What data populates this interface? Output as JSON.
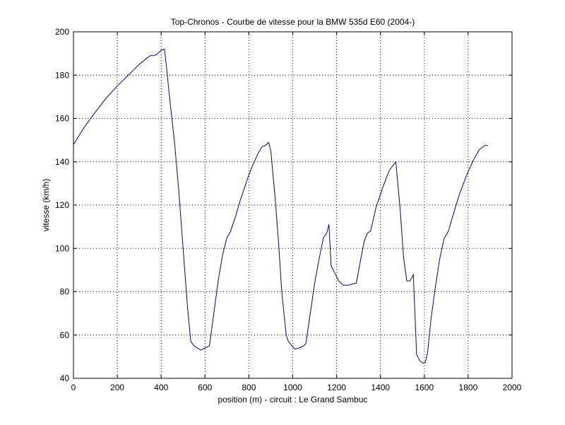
{
  "chart_data": {
    "type": "line",
    "title": "Top-Chronos - Courbe de vitesse pour la BMW 535d E60 (2004-)",
    "xlabel": "position (m) - circuit : Le Grand Sambuc",
    "ylabel": "vitesse (km/h)",
    "xlim": [
      0,
      2000
    ],
    "ylim": [
      40,
      200
    ],
    "xticks": [
      0,
      200,
      400,
      600,
      800,
      1000,
      1200,
      1400,
      1600,
      1800,
      2000
    ],
    "yticks": [
      40,
      60,
      80,
      100,
      120,
      140,
      160,
      180,
      200
    ],
    "grid": true,
    "line_color": "#00008B",
    "series": [
      {
        "x": [
          0,
          50,
          100,
          150,
          200,
          250,
          300,
          350,
          365,
          380,
          390,
          400,
          415,
          425,
          440,
          460,
          480,
          500,
          520,
          535,
          550,
          580,
          600,
          620,
          640,
          660,
          680,
          700,
          715,
          740,
          760,
          780,
          800,
          820,
          840,
          860,
          875,
          890,
          900,
          920,
          935,
          950,
          970,
          980,
          1010,
          1030,
          1050,
          1060,
          1080,
          1100,
          1120,
          1140,
          1155,
          1165,
          1175,
          1190,
          1210,
          1230,
          1255,
          1270,
          1290,
          1310,
          1325,
          1340,
          1355,
          1380,
          1410,
          1440,
          1470,
          1490,
          1505,
          1520,
          1535,
          1550,
          1555,
          1565,
          1580,
          1595,
          1605,
          1615,
          1630,
          1650,
          1670,
          1690,
          1710,
          1730,
          1760,
          1790,
          1820,
          1850,
          1875,
          1890
        ],
        "values": [
          148,
          156,
          163,
          169.5,
          175,
          180,
          185,
          189,
          189,
          189.5,
          190.5,
          191.5,
          192,
          183,
          168,
          150,
          127,
          100,
          73,
          57,
          55,
          53,
          54,
          55,
          70,
          85,
          97,
          105,
          107.5,
          115,
          122,
          128,
          134,
          139,
          143.5,
          147,
          147.5,
          149,
          145,
          123,
          103,
          80,
          60,
          57,
          53.5,
          54,
          55,
          56,
          70,
          84,
          95,
          105,
          107,
          111,
          92,
          89,
          85,
          83,
          83,
          83.5,
          84,
          95,
          103,
          107,
          108,
          119,
          128,
          136,
          140,
          118,
          96,
          85,
          85,
          88,
          75,
          51,
          48,
          47,
          47.5,
          52,
          67,
          82,
          95,
          104.5,
          108,
          115,
          125,
          133,
          140,
          145.5,
          147.5,
          147.5
        ]
      }
    ]
  }
}
